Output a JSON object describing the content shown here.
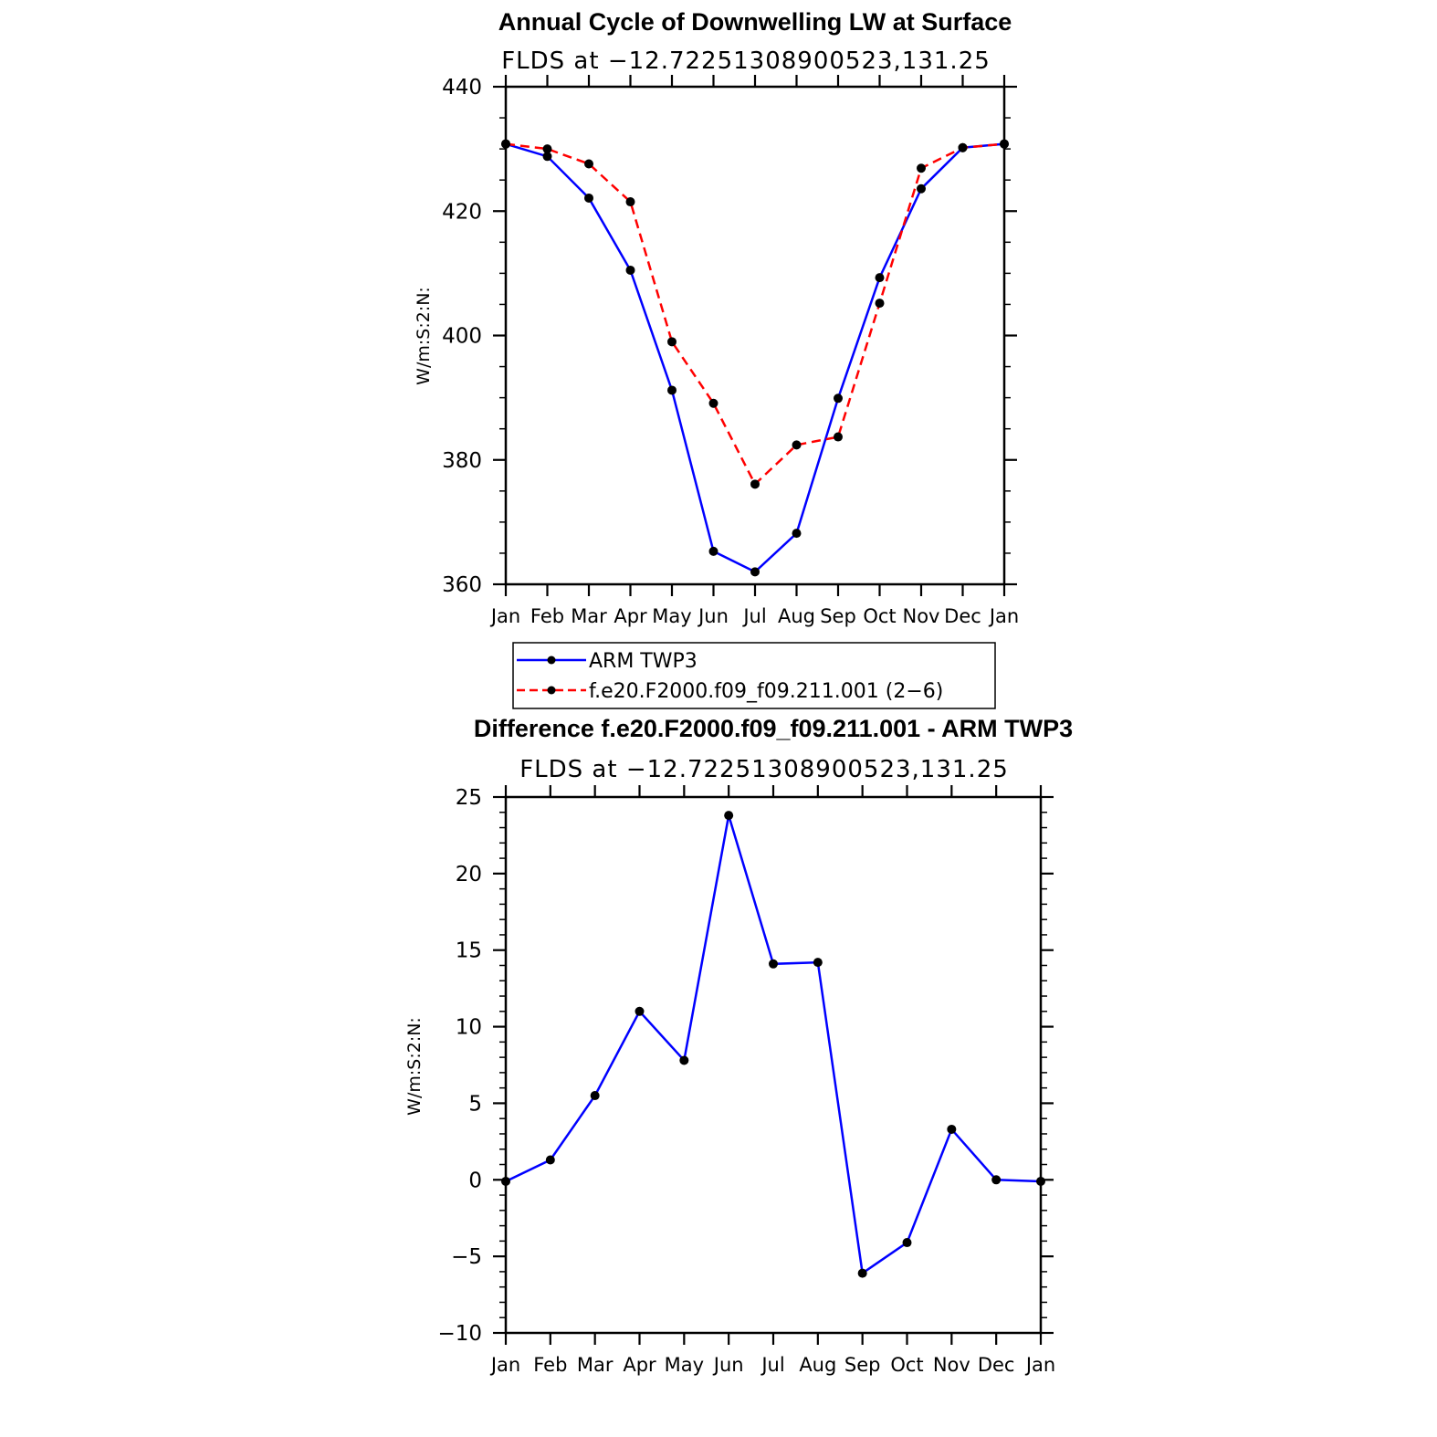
{
  "chart_data": [
    {
      "type": "line",
      "title": "Annual Cycle of Downwelling LW at Surface",
      "subtitle": "FLDS at −12.72251308900523,131.25",
      "ylabel": "W/m:S:2:N:",
      "xlabel": "",
      "categories": [
        "Jan",
        "Feb",
        "Mar",
        "Apr",
        "May",
        "Jun",
        "Jul",
        "Aug",
        "Sep",
        "Oct",
        "Nov",
        "Dec",
        "Jan"
      ],
      "ylim": [
        360,
        440
      ],
      "yticks": [
        "360",
        "380",
        "400",
        "420",
        "440"
      ],
      "series": [
        {
          "name": "ARM TWP3",
          "color": "#0000ff",
          "dash": "solid",
          "values": [
            430.8,
            428.8,
            422.1,
            410.5,
            391.2,
            365.3,
            362.0,
            368.2,
            389.9,
            409.3,
            423.6,
            430.2,
            430.8
          ]
        },
        {
          "name": "f.e20.F2000.f09_f09.211.001 (2−6)",
          "color": "#ff0000",
          "dash": "dashed",
          "values": [
            430.8,
            430.0,
            427.6,
            421.5,
            399.0,
            389.1,
            376.1,
            382.4,
            383.7,
            405.2,
            426.9,
            430.2,
            430.8
          ]
        }
      ],
      "legend": "below"
    },
    {
      "type": "line",
      "title": "Difference f.e20.F2000.f09_f09.211.001 - ARM TWP3",
      "subtitle": "FLDS at −12.72251308900523,131.25",
      "ylabel": "W/m:S:2:N:",
      "xlabel": "",
      "categories": [
        "Jan",
        "Feb",
        "Mar",
        "Apr",
        "May",
        "Jun",
        "Jul",
        "Aug",
        "Sep",
        "Oct",
        "Nov",
        "Dec",
        "Jan"
      ],
      "ylim": [
        -10,
        25
      ],
      "yticks": [
        "−10",
        "−5",
        "0",
        "5",
        "10",
        "15",
        "20",
        "25"
      ],
      "series": [
        {
          "name": "Difference",
          "color": "#0000ff",
          "dash": "solid",
          "values": [
            -0.1,
            1.3,
            5.5,
            11.0,
            7.8,
            23.8,
            14.1,
            14.2,
            -6.1,
            -4.1,
            3.3,
            0.0,
            -0.1
          ]
        }
      ]
    }
  ]
}
